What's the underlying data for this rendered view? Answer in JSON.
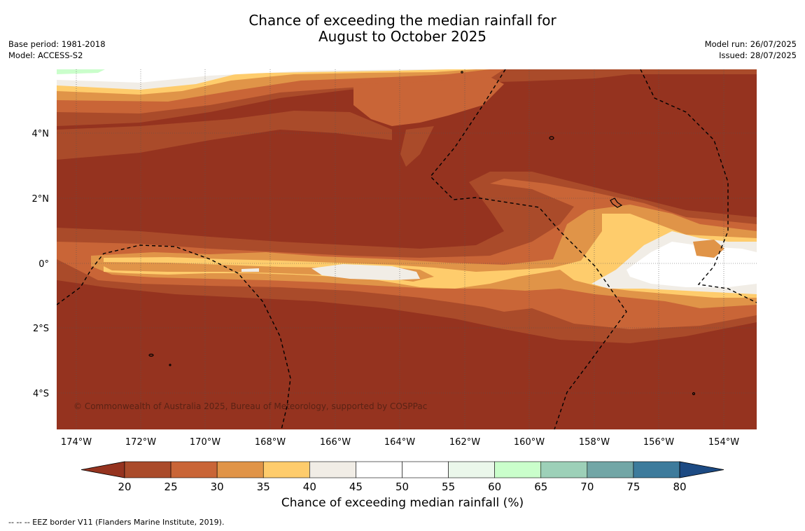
{
  "title_line1": "Chance of exceeding the median rainfall for",
  "title_line2": "August to October 2025",
  "meta": {
    "base_period": "Base period: 1981-2018",
    "model": "Model: ACCESS-S2",
    "model_run": "Model run: 26/07/2025",
    "issued": "Issued: 28/07/2025"
  },
  "copyright": "© Commonwealth of Australia 2025, Bureau of Meteorology, supported by COSPPac",
  "lon_labels": [
    "174°W",
    "172°W",
    "170°W",
    "168°W",
    "166°W",
    "164°W",
    "162°W",
    "160°W",
    "158°W",
    "156°W",
    "154°W"
  ],
  "lat_labels": [
    "4°N",
    "2°N",
    "0°",
    "2°S",
    "4°S"
  ],
  "colorbar": {
    "title": "Chance of exceeding median rainfall (%)",
    "ticks": [
      "20",
      "25",
      "30",
      "35",
      "40",
      "45",
      "50",
      "55",
      "60",
      "65",
      "70",
      "75",
      "80"
    ],
    "colors": [
      "#95331f",
      "#aa4b2a",
      "#c96537",
      "#e09448",
      "#fecc6c",
      "#f1ede6",
      "#ffffff",
      "#ffffff",
      "#ebf7eb",
      "#cafecb",
      "#9dd0b8",
      "#72a6a6",
      "#3d7b9c",
      "#1c4a83"
    ]
  },
  "footer": "--  --  -- EEZ border V11 (Flanders Marine Institute, 2019)."
}
